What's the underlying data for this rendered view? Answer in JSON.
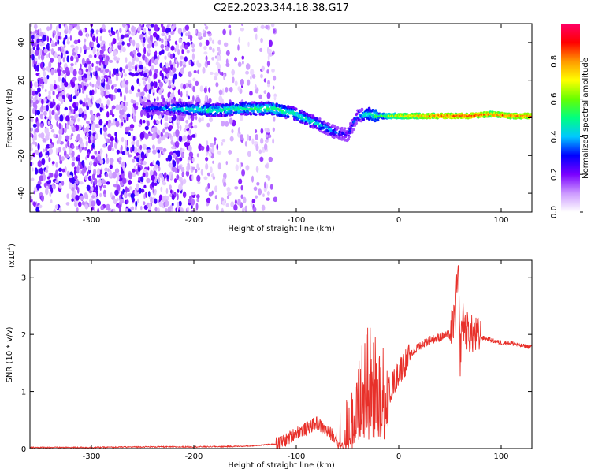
{
  "title": "C2E2.2023.344.18.38.G17",
  "chart_data": [
    {
      "type": "heatmap",
      "xlabel": "Height of straight line (km)",
      "ylabel": "Frequency (Hz)",
      "xlim": [
        -360,
        130
      ],
      "ylim": [
        -50,
        50
      ],
      "xticks": [
        -300,
        -200,
        -100,
        0,
        100
      ],
      "xtick_labels": [
        "-300",
        "-200",
        "-100",
        "0",
        "100"
      ],
      "yticks": [
        -40,
        -20,
        0,
        20,
        40
      ],
      "ytick_labels": [
        "-40",
        "-20",
        "0",
        "20",
        "40"
      ],
      "colorbar": {
        "label": "Normalized spectral amplitude",
        "range": [
          0,
          1
        ],
        "ticks": [
          0.0,
          0.2,
          0.4,
          0.6,
          0.8
        ],
        "tick_labels": [
          "0.0",
          "0.2",
          "0.4",
          "0.6",
          "0.8"
        ],
        "colors": [
          "#ffffff",
          "#cc99ff",
          "#7a00ff",
          "#0000ff",
          "#00c8ff",
          "#00ff80",
          "#66ff00",
          "#ffff00",
          "#ff9900",
          "#ff0000",
          "#ff0066"
        ]
      },
      "ridge": {
        "x": [
          -250,
          -215,
          -180,
          -150,
          -125,
          -100,
          -80,
          -60,
          -50,
          -40,
          -30,
          -20,
          0,
          40,
          70,
          90,
          110,
          130
        ],
        "frequency": [
          5,
          5,
          4,
          5,
          5,
          2,
          -3,
          -8,
          -9,
          1,
          2,
          1,
          1,
          1,
          1,
          2,
          1,
          1
        ],
        "amplitude": [
          0.3,
          0.45,
          0.5,
          0.5,
          0.55,
          0.5,
          0.45,
          0.35,
          0.3,
          0.4,
          0.5,
          0.55,
          0.75,
          0.85,
          0.9,
          0.85,
          0.85,
          0.85
        ]
      },
      "noise_region_x": [
        -360,
        -120
      ]
    },
    {
      "type": "line",
      "xlabel": "Height of straight line (km)",
      "ylabel": "SNR (10 * v/v)",
      "y_multiplier_label": "(x10",
      "y_multiplier_exp": "4",
      "y_multiplier_close": ")",
      "xlim": [
        -360,
        130
      ],
      "ylim": [
        0,
        3.3
      ],
      "xticks": [
        -300,
        -200,
        -100,
        0,
        100
      ],
      "xtick_labels": [
        "-300",
        "-200",
        "-100",
        "0",
        "100"
      ],
      "yticks": [
        0,
        1,
        2,
        3
      ],
      "ytick_labels": [
        "0",
        "1",
        "2",
        "3"
      ],
      "color": "#e8302a",
      "series": [
        {
          "x": [
            -360,
            -300,
            -250,
            -200,
            -150,
            -120,
            -110,
            -100,
            -90,
            -80,
            -70,
            -60,
            -50,
            -45,
            -40,
            -35,
            -30,
            -25,
            -20,
            -15,
            -10,
            -5,
            0,
            10,
            20,
            30,
            40,
            50,
            55,
            58,
            60,
            62,
            65,
            70,
            80,
            90,
            100,
            110,
            120,
            130
          ],
          "y": [
            0.02,
            0.02,
            0.03,
            0.03,
            0.04,
            0.08,
            0.15,
            0.28,
            0.35,
            0.45,
            0.3,
            0.2,
            0.3,
            0.55,
            0.9,
            1.3,
            1.6,
            1.5,
            1.3,
            1.2,
            1.0,
            1.15,
            1.35,
            1.6,
            1.8,
            1.9,
            1.95,
            2.0,
            2.3,
            3.1,
            1.6,
            2.3,
            2.1,
            2.0,
            1.95,
            1.9,
            1.85,
            1.85,
            1.8,
            1.78
          ]
        }
      ]
    }
  ]
}
